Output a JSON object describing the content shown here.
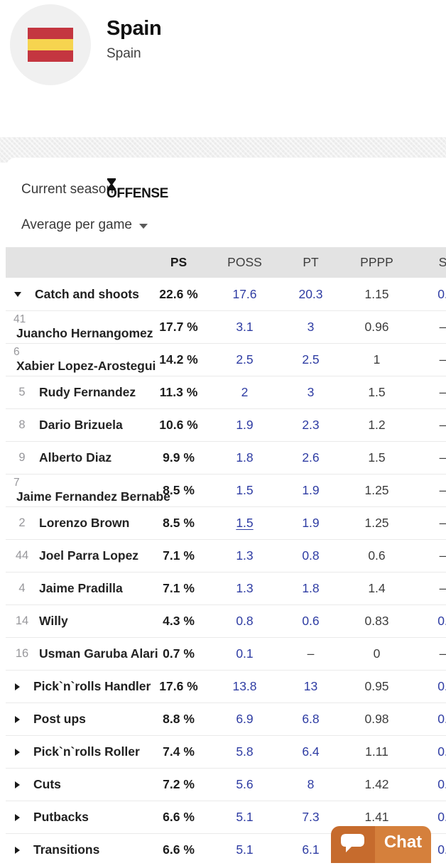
{
  "header": {
    "title": "Spain",
    "subtitle": "Spain",
    "flag": {
      "red": "#c43640",
      "yellow": "#f6d44f"
    }
  },
  "controls": {
    "season_label": "Current season",
    "section_label": "OFFENSE",
    "average_label": "Average per game"
  },
  "table": {
    "columns": {
      "ps": "PS",
      "poss": "POSS",
      "pt": "PT",
      "pppp": "PPPP",
      "s": "S"
    },
    "rows": [
      {
        "type": "group",
        "state": "expanded",
        "name": "Catch and shoots",
        "ps": "22.6 %",
        "poss": "17.6",
        "pt": "20.3",
        "pppp": "1.15",
        "s": "0.",
        "s_style": "link"
      },
      {
        "type": "player",
        "number": "41",
        "name": "Juancho Hernangomez",
        "two_line": true,
        "ps": "17.7 %",
        "poss": "3.1",
        "pt": "3",
        "pppp": "0.96",
        "s": "–"
      },
      {
        "type": "player",
        "number": "6",
        "name": "Xabier Lopez-Arostegui",
        "two_line": true,
        "ps": "14.2 %",
        "poss": "2.5",
        "pt": "2.5",
        "pppp": "1",
        "s": "–"
      },
      {
        "type": "player",
        "number": "5",
        "name": "Rudy Fernandez",
        "ps": "11.3 %",
        "poss": "2",
        "pt": "3",
        "pppp": "1.5",
        "s": "–"
      },
      {
        "type": "player",
        "number": "8",
        "name": "Dario Brizuela",
        "ps": "10.6 %",
        "poss": "1.9",
        "pt": "2.3",
        "pppp": "1.2",
        "s": "–"
      },
      {
        "type": "player",
        "number": "9",
        "name": "Alberto Diaz",
        "ps": "9.9 %",
        "poss": "1.8",
        "pt": "2.6",
        "pppp": "1.5",
        "s": "–"
      },
      {
        "type": "player",
        "number": "7",
        "name": "Jaime Fernandez Bernabe",
        "two_line": true,
        "ps": "8.5 %",
        "poss": "1.5",
        "pt": "1.9",
        "pppp": "1.25",
        "s": "–"
      },
      {
        "type": "player",
        "number": "2",
        "name": "Lorenzo Brown",
        "poss_underline": true,
        "ps": "8.5 %",
        "poss": "1.5",
        "pt": "1.9",
        "pppp": "1.25",
        "s": "–"
      },
      {
        "type": "player",
        "number": "44",
        "name": "Joel Parra Lopez",
        "ps": "7.1 %",
        "poss": "1.3",
        "pt": "0.8",
        "pppp": "0.6",
        "s": "–"
      },
      {
        "type": "player",
        "number": "4",
        "name": "Jaime Pradilla",
        "ps": "7.1 %",
        "poss": "1.3",
        "pt": "1.8",
        "pppp": "1.4",
        "s": "–"
      },
      {
        "type": "player",
        "number": "14",
        "name": "Willy",
        "ps": "4.3 %",
        "poss": "0.8",
        "pt": "0.6",
        "pppp": "0.83",
        "s": "0.",
        "s_style": "link"
      },
      {
        "type": "player",
        "number": "16",
        "name": "Usman Garuba Alari",
        "pt_plain": true,
        "ps": "0.7 %",
        "poss": "0.1",
        "pt": "–",
        "pppp": "0",
        "s": "–"
      },
      {
        "type": "group",
        "state": "collapsed",
        "name": "Pick`n`rolls Handler",
        "ps": "17.6 %",
        "poss": "13.8",
        "pt": "13",
        "pppp": "0.95",
        "s": "0.",
        "s_style": "link"
      },
      {
        "type": "group",
        "state": "collapsed",
        "name": "Post ups",
        "ps": "8.8 %",
        "poss": "6.9",
        "pt": "6.8",
        "pppp": "0.98",
        "s": "0.",
        "s_style": "link"
      },
      {
        "type": "group",
        "state": "collapsed",
        "name": "Pick`n`rolls Roller",
        "ps": "7.4 %",
        "poss": "5.8",
        "pt": "6.4",
        "pppp": "1.11",
        "s": "0.",
        "s_style": "link"
      },
      {
        "type": "group",
        "state": "collapsed",
        "name": "Cuts",
        "ps": "7.2 %",
        "poss": "5.6",
        "pt": "8",
        "pppp": "1.42",
        "s": "0.",
        "s_style": "link"
      },
      {
        "type": "group",
        "state": "collapsed",
        "name": "Putbacks",
        "ps": "6.6 %",
        "poss": "5.1",
        "pt": "7.3",
        "pppp": "1.41",
        "s": "0.",
        "s_style": "link"
      },
      {
        "type": "group",
        "state": "collapsed",
        "name": "Transitions",
        "ps": "6.6 %",
        "poss": "5.1",
        "pt": "6.1",
        "pppp": "",
        "s": "0.",
        "s_style": "link"
      }
    ]
  },
  "chat": {
    "label": "Chat"
  },
  "colors": {
    "link_blue": "#2e3ca3",
    "header_gray": "#e3e3e3",
    "chat_dark_orange": "#c66b2d",
    "chat_light_orange": "#d5803c"
  }
}
